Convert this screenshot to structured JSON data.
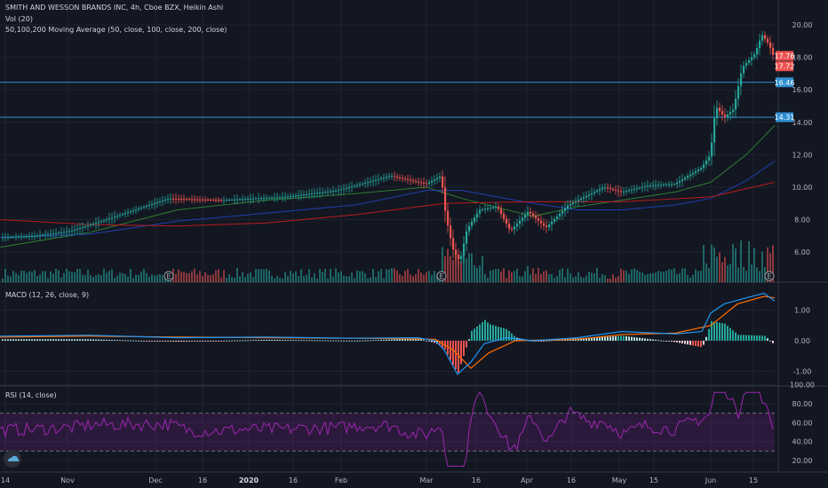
{
  "header": {
    "title": "SMITH AND WESSON BRANDS INC, 4h, Cboe BZX, Heikin Ashi",
    "vol": "Vol (20)",
    "ma": "50,100,200 Moving Average (50, close, 100, close, 200, close)"
  },
  "macd_label": "MACD (12, 26, close, 9)",
  "rsi_label": "RSI (14, close)",
  "colors": {
    "up": "#26a69a",
    "down": "#ef5350",
    "ma50": "#2e7d32",
    "ma100": "#1e3fb0",
    "ma200": "#b71c1c",
    "hline": "#2f8fd0",
    "macd": "#2196f3",
    "signal": "#ff6d00",
    "rsi": "#9c27b0"
  },
  "chart_data": [
    {
      "type": "candlestick",
      "title": "SMITH AND WESSON BRANDS INC, 4h, Cboe BZX, Heikin Ashi",
      "x_ticks": [
        "14",
        "Nov",
        "Dec",
        "16",
        "2020",
        "16",
        "Feb",
        "Mar",
        "16",
        "Apr",
        "16",
        "May",
        "15",
        "Jun",
        "15"
      ],
      "y_ticks": [
        "20.00",
        "18.00",
        "16.00",
        "14.00",
        "12.00",
        "10.00",
        "8.00",
        "6.00"
      ],
      "ylim": [
        4.2,
        20.7
      ],
      "price_path": [
        [
          0,
          6.9
        ],
        [
          40,
          7.0
        ],
        [
          80,
          7.3
        ],
        [
          120,
          8.0
        ],
        [
          190,
          9.3
        ],
        [
          250,
          9.2
        ],
        [
          320,
          9.4
        ],
        [
          380,
          9.8
        ],
        [
          440,
          10.7
        ],
        [
          480,
          10.2
        ],
        [
          497,
          10.7
        ],
        [
          502,
          8.3
        ],
        [
          510,
          6.2
        ],
        [
          518,
          5.4
        ],
        [
          526,
          7.4
        ],
        [
          540,
          8.6
        ],
        [
          560,
          8.8
        ],
        [
          575,
          7.3
        ],
        [
          595,
          8.5
        ],
        [
          615,
          7.5
        ],
        [
          640,
          8.9
        ],
        [
          680,
          10.0
        ],
        [
          700,
          9.7
        ],
        [
          730,
          10.1
        ],
        [
          760,
          10.2
        ],
        [
          790,
          11.2
        ],
        [
          800,
          12.0
        ],
        [
          806,
          15.0
        ],
        [
          816,
          14.3
        ],
        [
          826,
          14.8
        ],
        [
          836,
          17.4
        ],
        [
          850,
          18.2
        ],
        [
          858,
          19.4
        ],
        [
          866,
          18.8
        ],
        [
          875,
          17.5
        ]
      ],
      "moving_averages": [
        {
          "name": "MA 50",
          "points": [
            [
              0,
              6.3
            ],
            [
              100,
              7.2
            ],
            [
              200,
              8.6
            ],
            [
              300,
              9.2
            ],
            [
              400,
              9.6
            ],
            [
              480,
              10.0
            ],
            [
              520,
              9.3
            ],
            [
              600,
              8.2
            ],
            [
              650,
              8.8
            ],
            [
              700,
              9.2
            ],
            [
              760,
              9.7
            ],
            [
              800,
              10.3
            ],
            [
              840,
              12.0
            ],
            [
              872,
              13.8
            ]
          ]
        },
        {
          "name": "MA 100",
          "points": [
            [
              0,
              6.9
            ],
            [
              100,
              7.1
            ],
            [
              200,
              7.9
            ],
            [
              300,
              8.4
            ],
            [
              400,
              8.9
            ],
            [
              480,
              9.8
            ],
            [
              520,
              9.8
            ],
            [
              600,
              9.0
            ],
            [
              650,
              8.6
            ],
            [
              700,
              8.6
            ],
            [
              760,
              8.9
            ],
            [
              800,
              9.3
            ],
            [
              840,
              10.4
            ],
            [
              872,
              11.6
            ]
          ]
        },
        {
          "name": "MA 200",
          "points": [
            [
              0,
              8.0
            ],
            [
              100,
              7.7
            ],
            [
              200,
              7.6
            ],
            [
              300,
              7.8
            ],
            [
              400,
              8.3
            ],
            [
              500,
              9.0
            ],
            [
              600,
              9.1
            ],
            [
              700,
              9.1
            ],
            [
              800,
              9.4
            ],
            [
              872,
              10.3
            ]
          ]
        }
      ],
      "hlines": [
        {
          "value": 16.46,
          "label": "16.46"
        },
        {
          "value": 14.31,
          "label": "14.31"
        }
      ],
      "price_labels": [
        {
          "value": 17.76,
          "label": "17.76"
        },
        {
          "value": 17.72,
          "label": "17.72"
        }
      ],
      "earnings_markers": [
        {
          "x": 190,
          "label": "E"
        },
        {
          "x": 497,
          "label": "E"
        },
        {
          "x": 866,
          "label": "E"
        }
      ]
    },
    {
      "type": "macd",
      "title": "MACD (12, 26, close, 9)",
      "y_ticks": [
        "1.00",
        "0.00",
        "-1.00"
      ],
      "ylim": [
        -1.45,
        1.9
      ],
      "macd": [
        [
          0,
          0.15
        ],
        [
          100,
          0.18
        ],
        [
          200,
          0.1
        ],
        [
          300,
          0.12
        ],
        [
          400,
          0.08
        ],
        [
          470,
          0.1
        ],
        [
          490,
          0.0
        ],
        [
          500,
          -0.3
        ],
        [
          515,
          -1.1
        ],
        [
          530,
          -0.7
        ],
        [
          545,
          -0.1
        ],
        [
          570,
          0.1
        ],
        [
          600,
          0.0
        ],
        [
          650,
          0.1
        ],
        [
          700,
          0.3
        ],
        [
          760,
          0.22
        ],
        [
          790,
          0.3
        ],
        [
          800,
          0.9
        ],
        [
          815,
          1.2
        ],
        [
          840,
          1.4
        ],
        [
          860,
          1.55
        ],
        [
          872,
          1.3
        ]
      ],
      "signal": [
        [
          0,
          0.12
        ],
        [
          100,
          0.15
        ],
        [
          200,
          0.12
        ],
        [
          300,
          0.1
        ],
        [
          400,
          0.08
        ],
        [
          490,
          0.05
        ],
        [
          510,
          -0.3
        ],
        [
          530,
          -0.9
        ],
        [
          550,
          -0.4
        ],
        [
          580,
          0.0
        ],
        [
          650,
          0.05
        ],
        [
          700,
          0.2
        ],
        [
          760,
          0.25
        ],
        [
          800,
          0.5
        ],
        [
          830,
          1.2
        ],
        [
          860,
          1.45
        ],
        [
          872,
          1.4
        ]
      ]
    },
    {
      "type": "rsi",
      "title": "RSI (14, close)",
      "y_ticks": [
        "100.00",
        "80.00",
        "60.00",
        "40.00",
        "20.00"
      ],
      "ylim": [
        12,
        100
      ],
      "band": [
        30,
        70
      ]
    }
  ]
}
